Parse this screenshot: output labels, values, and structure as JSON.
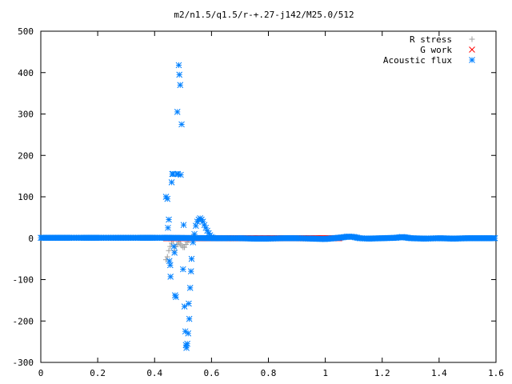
{
  "chart_data": {
    "type": "scatter",
    "title": "m2/n1.5/q1.5/r-+.27-j142/M25.0/512",
    "xlabel": "",
    "ylabel": "",
    "xlim": [
      0,
      1.6
    ],
    "ylim": [
      -300,
      500
    ],
    "x_ticks": [
      0,
      0.2,
      0.4,
      0.6,
      0.8,
      1,
      1.2,
      1.4,
      1.6
    ],
    "x_tick_labels": [
      "0",
      "0.2",
      "0.4",
      "0.6",
      "0.8",
      "1",
      "1.2",
      "1.4",
      "1.6"
    ],
    "y_ticks": [
      -300,
      -200,
      -100,
      0,
      100,
      200,
      300,
      400,
      500
    ],
    "y_tick_labels": [
      "-300",
      "-200",
      "-100",
      "0",
      "100",
      "200",
      "300",
      "400",
      "500"
    ],
    "grid": false,
    "legend_position": "top-right",
    "series": [
      {
        "name": "R stress",
        "marker": "plus",
        "color": "#a0a0a0",
        "points": [
          [
            0.44,
            -52
          ],
          [
            0.445,
            -45
          ],
          [
            0.45,
            -30
          ],
          [
            0.455,
            -20
          ],
          [
            0.46,
            -12
          ],
          [
            0.465,
            -5
          ],
          [
            0.47,
            -30
          ],
          [
            0.475,
            -20
          ],
          [
            0.48,
            -15
          ],
          [
            0.485,
            -10
          ],
          [
            0.49,
            -14
          ],
          [
            0.495,
            -18
          ],
          [
            0.5,
            -22
          ],
          [
            0.505,
            -22
          ],
          [
            0.51,
            -15
          ],
          [
            0.515,
            -10
          ],
          [
            0.52,
            -5
          ],
          [
            0.525,
            0
          ],
          [
            0.53,
            2
          ],
          [
            0.535,
            3
          ],
          [
            0.54,
            4
          ],
          [
            0.545,
            2
          ],
          [
            0.55,
            1
          ],
          [
            0.56,
            0
          ]
        ]
      },
      {
        "name": "G work",
        "marker": "cross",
        "color": "#ff0000",
        "x_start": 0.44,
        "x_end": 1.05,
        "value": 0
      },
      {
        "name": "Acoustic flux",
        "marker": "star",
        "color": "#0080ff",
        "points": [
          [
            0.44,
            100
          ],
          [
            0.445,
            95
          ],
          [
            0.447,
            25
          ],
          [
            0.45,
            45
          ],
          [
            0.452,
            -55
          ],
          [
            0.455,
            -65
          ],
          [
            0.456,
            -93
          ],
          [
            0.46,
            135
          ],
          [
            0.462,
            155
          ],
          [
            0.465,
            155
          ],
          [
            0.468,
            -20
          ],
          [
            0.47,
            -35
          ],
          [
            0.472,
            -138
          ],
          [
            0.475,
            -142
          ],
          [
            0.478,
            155
          ],
          [
            0.48,
            305
          ],
          [
            0.482,
            155
          ],
          [
            0.485,
            418
          ],
          [
            0.487,
            395
          ],
          [
            0.49,
            370
          ],
          [
            0.492,
            153
          ],
          [
            0.495,
            275
          ],
          [
            0.5,
            -75
          ],
          [
            0.502,
            32
          ],
          [
            0.505,
            -165
          ],
          [
            0.508,
            -225
          ],
          [
            0.51,
            -258
          ],
          [
            0.512,
            -265
          ],
          [
            0.515,
            -255
          ],
          [
            0.518,
            -230
          ],
          [
            0.52,
            -158
          ],
          [
            0.522,
            -195
          ],
          [
            0.525,
            -120
          ],
          [
            0.528,
            -80
          ],
          [
            0.53,
            -50
          ],
          [
            0.535,
            -10
          ],
          [
            0.54,
            10
          ],
          [
            0.545,
            30
          ],
          [
            0.55,
            40
          ],
          [
            0.555,
            45
          ],
          [
            0.56,
            48
          ],
          [
            0.565,
            45
          ],
          [
            0.57,
            40
          ],
          [
            0.575,
            32
          ],
          [
            0.58,
            25
          ],
          [
            0.585,
            18
          ],
          [
            0.59,
            12
          ],
          [
            0.595,
            7
          ],
          [
            0.6,
            3
          ],
          [
            0.605,
            1
          ],
          [
            0.61,
            0
          ]
        ],
        "baseline": [
          [
            0,
            1
          ],
          [
            0.05,
            1
          ],
          [
            0.1,
            1
          ],
          [
            0.15,
            1
          ],
          [
            0.2,
            1
          ],
          [
            0.25,
            1
          ],
          [
            0.3,
            1
          ],
          [
            0.35,
            1
          ],
          [
            0.4,
            1
          ],
          [
            0.43,
            1
          ],
          [
            0.62,
            0
          ],
          [
            0.65,
            0
          ],
          [
            0.7,
            0
          ],
          [
            0.75,
            -1
          ],
          [
            0.8,
            -1
          ],
          [
            0.85,
            0
          ],
          [
            0.9,
            0
          ],
          [
            0.95,
            -1
          ],
          [
            1.0,
            -2
          ],
          [
            1.03,
            0
          ],
          [
            1.06,
            2
          ],
          [
            1.08,
            4
          ],
          [
            1.1,
            3
          ],
          [
            1.12,
            0
          ],
          [
            1.15,
            -1
          ],
          [
            1.2,
            0
          ],
          [
            1.25,
            1
          ],
          [
            1.27,
            3
          ],
          [
            1.3,
            0
          ],
          [
            1.35,
            -1
          ],
          [
            1.4,
            0
          ],
          [
            1.45,
            -1
          ],
          [
            1.5,
            0
          ],
          [
            1.55,
            0
          ],
          [
            1.6,
            0
          ]
        ]
      }
    ]
  }
}
